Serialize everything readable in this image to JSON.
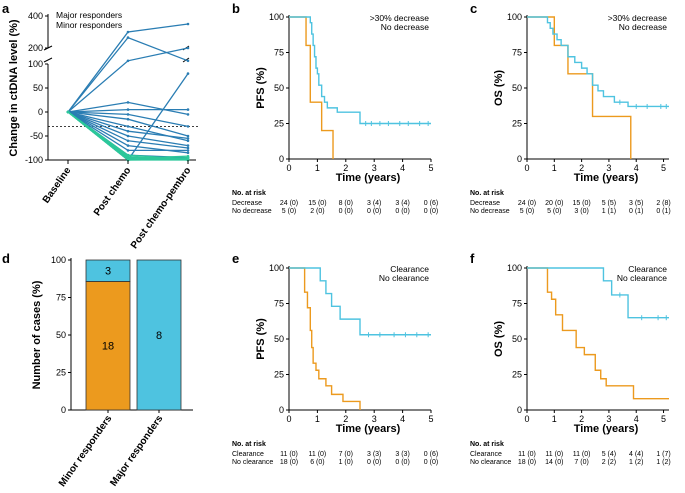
{
  "colors": {
    "cyan": "#4ec3e0",
    "orange": "#ec9a1e",
    "green": "#2cc79a",
    "blue": "#2a7db3",
    "black": "#000000"
  },
  "chart_data": [
    {
      "panel": "a",
      "type": "line",
      "ylabel": "Change in ctDNA level (%)",
      "categories": [
        "Baseline",
        "Post chemo",
        "Post chemo-pembro"
      ],
      "y_ticks_lower": [
        "-100",
        "-50",
        "0",
        "50",
        "100"
      ],
      "y_ticks_upper": [
        "200",
        "400"
      ],
      "legend": [
        "Major responders",
        "Minor responders"
      ],
      "threshold": -30,
      "series": [
        {
          "name": "Minor responders",
          "values": [
            0,
            300,
            350
          ]
        },
        {
          "name": "Minor responders",
          "values": [
            0,
            265,
            120
          ]
        },
        {
          "name": "Minor responders",
          "values": [
            0,
            120,
            200
          ]
        },
        {
          "name": "Minor responders",
          "values": [
            0,
            20,
            -5
          ]
        },
        {
          "name": "Minor responders",
          "values": [
            0,
            5,
            5
          ]
        },
        {
          "name": "Minor responders",
          "values": [
            0,
            -5,
            -30
          ]
        },
        {
          "name": "Minor responders",
          "values": [
            0,
            -15,
            -50
          ]
        },
        {
          "name": "Minor responders",
          "values": [
            0,
            -30,
            -60
          ]
        },
        {
          "name": "Minor responders",
          "values": [
            0,
            -40,
            -55
          ]
        },
        {
          "name": "Minor responders",
          "values": [
            0,
            -50,
            -70
          ]
        },
        {
          "name": "Minor responders",
          "values": [
            0,
            -60,
            -75
          ]
        },
        {
          "name": "Minor responders",
          "values": [
            0,
            -70,
            -85
          ]
        },
        {
          "name": "Minor responders",
          "values": [
            0,
            -80,
            -80
          ]
        },
        {
          "name": "Minor responders",
          "values": [
            0,
            -90,
            -95
          ]
        },
        {
          "name": "Minor responders",
          "values": [
            0,
            -100,
            80
          ]
        },
        {
          "name": "Major responders",
          "values": [
            0,
            -95,
            -100
          ]
        },
        {
          "name": "Major responders",
          "values": [
            0,
            -100,
            -100
          ]
        },
        {
          "name": "Major responders",
          "values": [
            0,
            -90,
            -98
          ]
        },
        {
          "name": "Major responders",
          "values": [
            0,
            -97,
            -92
          ]
        },
        {
          "name": "Major responders",
          "values": [
            0,
            -100,
            -96
          ]
        },
        {
          "name": "Major responders",
          "values": [
            0,
            -93,
            -100
          ]
        },
        {
          "name": "Major responders",
          "values": [
            0,
            -99,
            -95
          ]
        },
        {
          "name": "Major responders",
          "values": [
            0,
            -100,
            -99
          ]
        }
      ]
    },
    {
      "panel": "b",
      "type": "line",
      "kind": "kaplan-meier",
      "xlabel": "Time (years)",
      "ylabel": "PFS (%)",
      "xlim": [
        0,
        5
      ],
      "ylim": [
        0,
        100
      ],
      "x_ticks": [
        "0",
        "1",
        "2",
        "3",
        "4",
        "5"
      ],
      "y_ticks": [
        "0",
        "25",
        "50",
        "75",
        "100"
      ],
      "series": [
        {
          "name": ">30% decrease",
          "color": "cyan",
          "steps": [
            [
              0,
              100
            ],
            [
              0.75,
              96
            ],
            [
              0.8,
              88
            ],
            [
              0.85,
              80
            ],
            [
              0.9,
              72
            ],
            [
              0.95,
              64
            ],
            [
              1.0,
              60
            ],
            [
              1.05,
              52
            ],
            [
              1.15,
              44
            ],
            [
              1.25,
              40
            ],
            [
              1.35,
              36
            ],
            [
              1.7,
              33
            ],
            [
              2.5,
              25
            ],
            [
              5.0,
              25
            ]
          ],
          "censors": [
            2.7,
            2.9,
            3.2,
            3.5,
            3.9,
            4.2,
            4.6,
            4.9
          ]
        },
        {
          "name": "No decrease",
          "color": "orange",
          "steps": [
            [
              0,
              100
            ],
            [
              0.6,
              80
            ],
            [
              0.75,
              40
            ],
            [
              1.15,
              20
            ],
            [
              1.55,
              0
            ]
          ],
          "censors": []
        }
      ],
      "risk_table": {
        "title": "No. at risk",
        "rows": [
          {
            "label": "Decrease",
            "values": [
              "24 (0)",
              "15 (0)",
              "8 (0)",
              "3 (4)",
              "3 (4)",
              "0 (6)"
            ]
          },
          {
            "label": "No decrease",
            "values": [
              "5 (0)",
              "2 (0)",
              "0 (0)",
              "0 (0)",
              "0 (0)",
              "0 (0)"
            ]
          }
        ]
      }
    },
    {
      "panel": "c",
      "type": "line",
      "kind": "kaplan-meier",
      "xlabel": "Time (years)",
      "ylabel": "OS (%)",
      "xlim": [
        0,
        5
      ],
      "ylim": [
        0,
        100
      ],
      "x_ticks": [
        "0",
        "1",
        "2",
        "3",
        "4",
        "5"
      ],
      "y_ticks": [
        "0",
        "25",
        "50",
        "75",
        "100"
      ],
      "series": [
        {
          "name": ">30% decrease",
          "color": "cyan",
          "steps": [
            [
              0,
              100
            ],
            [
              0.75,
              96
            ],
            [
              0.85,
              92
            ],
            [
              0.95,
              88
            ],
            [
              1.1,
              84
            ],
            [
              1.25,
              80
            ],
            [
              1.5,
              72
            ],
            [
              1.75,
              68
            ],
            [
              2.0,
              64
            ],
            [
              2.2,
              60
            ],
            [
              2.4,
              52
            ],
            [
              2.6,
              48
            ],
            [
              2.8,
              44
            ],
            [
              3.2,
              40
            ],
            [
              3.7,
              37
            ],
            [
              5.2,
              37
            ]
          ],
          "censors": [
            3.4,
            4.0,
            4.4,
            4.9,
            5.1
          ]
        },
        {
          "name": "No decrease",
          "color": "orange",
          "steps": [
            [
              0,
              100
            ],
            [
              1.0,
              80
            ],
            [
              1.5,
              60
            ],
            [
              2.4,
              30
            ],
            [
              3.8,
              0
            ]
          ],
          "censors": []
        }
      ],
      "risk_table": {
        "title": "No. at risk",
        "rows": [
          {
            "label": "Decrease",
            "values": [
              "24 (0)",
              "20 (0)",
              "15 (0)",
              "5 (5)",
              "3 (5)",
              "2 (8)"
            ]
          },
          {
            "label": "No decrease",
            "values": [
              "5 (0)",
              "5 (0)",
              "3 (0)",
              "1 (1)",
              "0 (1)",
              "0 (1)"
            ]
          }
        ]
      }
    },
    {
      "panel": "d",
      "type": "bar",
      "stacked": true,
      "ylabel": "Number of cases (%)",
      "categories": [
        "Minor responders",
        "Major responders"
      ],
      "ylim": [
        0,
        100
      ],
      "y_ticks": [
        "0",
        "25",
        "50",
        "75",
        "100"
      ],
      "series": [
        {
          "name": "No clearance",
          "color": "orange",
          "values": [
            85.7,
            0
          ],
          "counts": [
            "18",
            ""
          ]
        },
        {
          "name": "Clearance",
          "color": "cyan",
          "values": [
            14.3,
            100
          ],
          "counts": [
            "3",
            "8"
          ]
        }
      ]
    },
    {
      "panel": "e",
      "type": "line",
      "kind": "kaplan-meier",
      "xlabel": "Time (years)",
      "ylabel": "PFS (%)",
      "xlim": [
        0,
        5
      ],
      "ylim": [
        0,
        100
      ],
      "x_ticks": [
        "0",
        "1",
        "2",
        "3",
        "4",
        "5"
      ],
      "y_ticks": [
        "0",
        "25",
        "50",
        "75",
        "100"
      ],
      "series": [
        {
          "name": "Clearance",
          "color": "cyan",
          "steps": [
            [
              0,
              100
            ],
            [
              1.1,
              91
            ],
            [
              1.3,
              82
            ],
            [
              1.5,
              73
            ],
            [
              1.8,
              64
            ],
            [
              2.5,
              53
            ],
            [
              5.0,
              53
            ]
          ],
          "censors": [
            2.8,
            3.2,
            3.7,
            4.1,
            4.5,
            4.9
          ]
        },
        {
          "name": "No clearance",
          "color": "orange",
          "steps": [
            [
              0,
              100
            ],
            [
              0.55,
              83
            ],
            [
              0.65,
              72
            ],
            [
              0.75,
              56
            ],
            [
              0.8,
              44
            ],
            [
              0.85,
              33
            ],
            [
              0.95,
              28
            ],
            [
              1.05,
              22
            ],
            [
              1.3,
              17
            ],
            [
              1.5,
              11
            ],
            [
              1.9,
              6
            ],
            [
              2.5,
              0
            ]
          ],
          "censors": []
        }
      ],
      "risk_table": {
        "title": "No. at risk",
        "rows": [
          {
            "label": "Clearance",
            "values": [
              "11 (0)",
              "11 (0)",
              "7 (0)",
              "3 (3)",
              "3 (3)",
              "0 (6)"
            ]
          },
          {
            "label": "No clearance",
            "values": [
              "18 (0)",
              "6 (0)",
              "1 (0)",
              "0 (0)",
              "0 (0)",
              "0 (0)"
            ]
          }
        ]
      }
    },
    {
      "panel": "f",
      "type": "line",
      "kind": "kaplan-meier",
      "xlabel": "Time (years)",
      "ylabel": "OS (%)",
      "xlim": [
        0,
        5
      ],
      "ylim": [
        0,
        100
      ],
      "x_ticks": [
        "0",
        "1",
        "2",
        "3",
        "4",
        "5"
      ],
      "y_ticks": [
        "0",
        "25",
        "50",
        "75",
        "100"
      ],
      "series": [
        {
          "name": "Clearance",
          "color": "cyan",
          "steps": [
            [
              0,
              100
            ],
            [
              2.8,
              91
            ],
            [
              3.1,
              81
            ],
            [
              3.7,
              65
            ],
            [
              5.2,
              65
            ]
          ],
          "censors": [
            3.4,
            4.2,
            4.8,
            5.1
          ]
        },
        {
          "name": "No clearance",
          "color": "orange",
          "steps": [
            [
              0,
              100
            ],
            [
              0.75,
              83
            ],
            [
              0.9,
              78
            ],
            [
              1.05,
              67
            ],
            [
              1.3,
              56
            ],
            [
              1.8,
              44
            ],
            [
              2.1,
              39
            ],
            [
              2.5,
              28
            ],
            [
              2.7,
              22
            ],
            [
              2.9,
              17
            ],
            [
              3.9,
              8
            ],
            [
              5.2,
              8
            ]
          ],
          "censors": []
        }
      ],
      "risk_table": {
        "title": "No. at risk",
        "rows": [
          {
            "label": "Clearance",
            "values": [
              "11 (0)",
              "11 (0)",
              "11 (0)",
              "5 (4)",
              "4 (4)",
              "1 (7)"
            ]
          },
          {
            "label": "No clearance",
            "values": [
              "18 (0)",
              "14 (0)",
              "7 (0)",
              "2 (2)",
              "1 (2)",
              "1 (2)"
            ]
          }
        ]
      }
    }
  ]
}
